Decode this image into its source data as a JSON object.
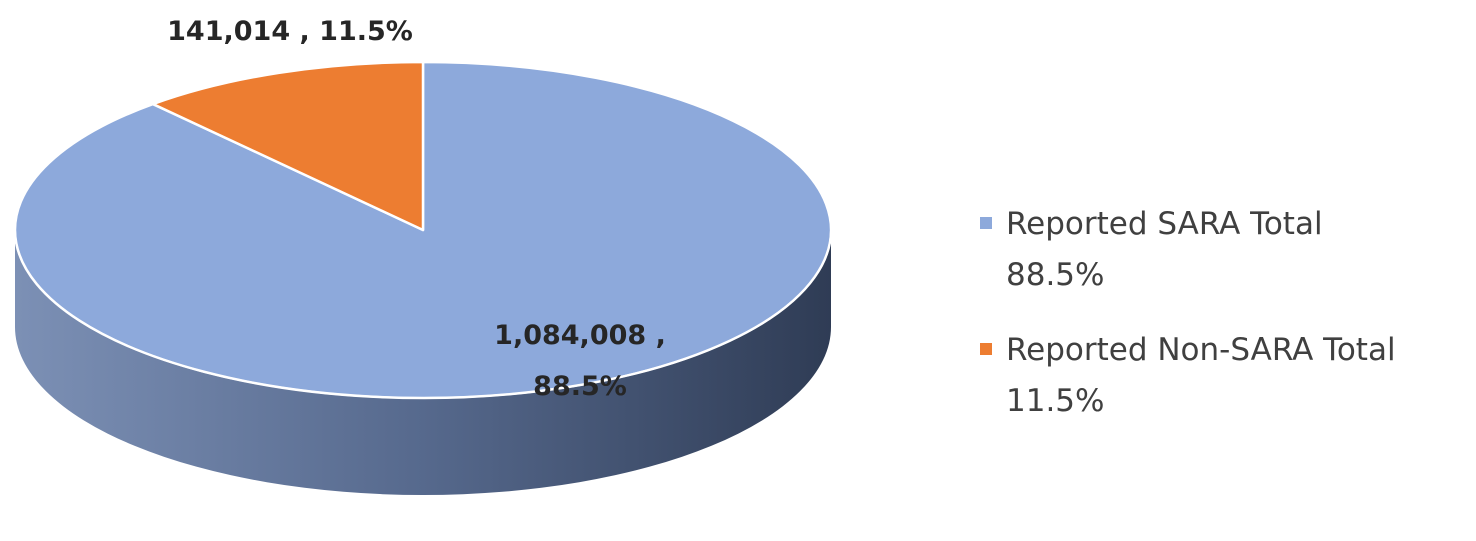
{
  "chart_data": {
    "type": "pie",
    "style": "3d",
    "series": [
      {
        "label": "Reported SARA Total",
        "value": 1084008,
        "percent": 88.5,
        "color": "#8DA9DB",
        "side_color": "#4A5E80",
        "data_label_line1": "1,084,008 ,",
        "data_label_line2": "88.5%",
        "legend_line1": "Reported  SARA Total",
        "legend_line2": "88.5%"
      },
      {
        "label": "Reported Non-SARA Total",
        "value": 141014,
        "percent": 11.5,
        "color": "#ED7D31",
        "side_color": "#A0521E",
        "data_label_line1": "141,014 , 11.5%",
        "legend_line1": "Reported Non-SARA Total",
        "legend_line2": "11.5%"
      }
    ],
    "start_angle": "12 o'clock",
    "legend_position": "right"
  }
}
